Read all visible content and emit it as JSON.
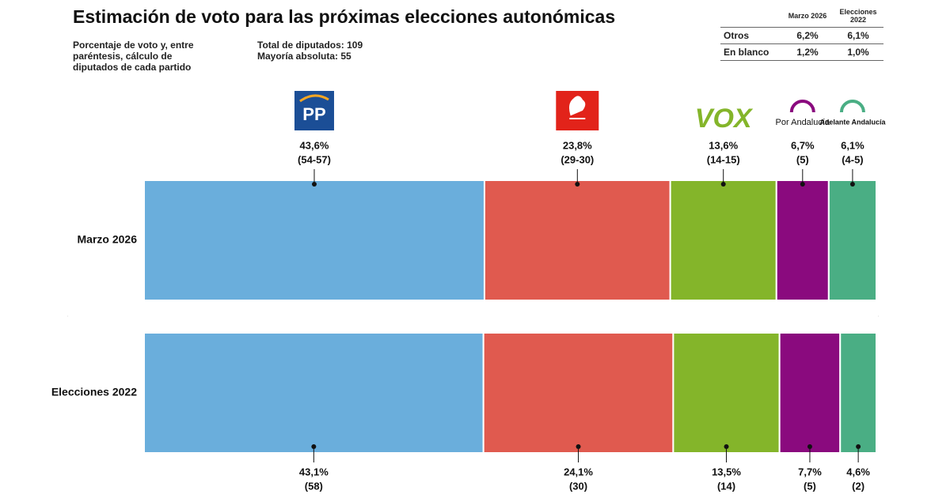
{
  "chart_data": {
    "type": "stacked-bar-horizontal",
    "title": "Estimación de voto para las próximas elecciones autonómicas",
    "subtitle": "Porcentaje de voto y, entre paréntesis, cálculo de diputados de cada partido",
    "notes": [
      "Total de diputados: 109",
      "Mayoría absoluta: 55"
    ],
    "categories": [
      "Marzo 2026",
      "Elecciones 2022"
    ],
    "series": [
      {
        "name": "PP",
        "color": "#6aaedc",
        "values": [
          43.6,
          43.1
        ],
        "value_labels": [
          "43,6%",
          "43,1%"
        ],
        "seat_labels": [
          "(54-57)",
          "(58)"
        ]
      },
      {
        "color": "#e05a4f",
        "values": [
          23.8,
          24.1
        ],
        "value_labels": [
          "23,8%",
          "24,1%"
        ],
        "seat_labels": [
          "(29-30)",
          "(30)"
        ]
      },
      {
        "name": "VOX",
        "color": "#84b52a",
        "values": [
          13.6,
          13.5
        ],
        "value_labels": [
          "13,6%",
          "13,5%"
        ],
        "seat_labels": [
          "(14-15)",
          "(14)"
        ]
      },
      {
        "name": "Por Andalucía",
        "color": "#8a0a7e",
        "values": [
          6.7,
          7.7
        ],
        "value_labels": [
          "6,7%",
          "7,7%"
        ],
        "seat_labels": [
          "(5)",
          "(5)"
        ]
      },
      {
        "name": "Adelante Andalucía",
        "color": "#4aae84",
        "values": [
          6.1,
          4.6
        ],
        "value_labels": [
          "6,1%",
          "4,6%"
        ],
        "seat_labels": [
          "(4-5)",
          "(2)"
        ]
      }
    ]
  },
  "table": {
    "columns": [
      "Marzo 2026",
      "Elecciones 2022"
    ],
    "rows": [
      [
        "Otros",
        "6,2%",
        "6,1%"
      ],
      [
        "En blanco",
        "1,2%",
        "1,0%"
      ]
    ]
  }
}
